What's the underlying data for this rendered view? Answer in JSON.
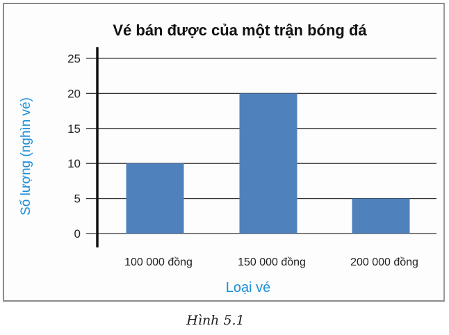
{
  "chart_data": {
    "type": "bar",
    "title": "Vé bán được của một trận bóng đá",
    "xlabel": "Loại vé",
    "ylabel": "Số lượng (nghìn vé)",
    "categories": [
      "100 000 đồng",
      "150 000 đồng",
      "200 000 đồng"
    ],
    "values": [
      10,
      20,
      5
    ],
    "ylim": [
      0,
      25
    ],
    "yticks": [
      0,
      5,
      10,
      15,
      20,
      25
    ],
    "grid": true,
    "bar_color": "#4f81bd",
    "label_color": "#1a8ed8"
  },
  "caption": "Hình 5.1"
}
